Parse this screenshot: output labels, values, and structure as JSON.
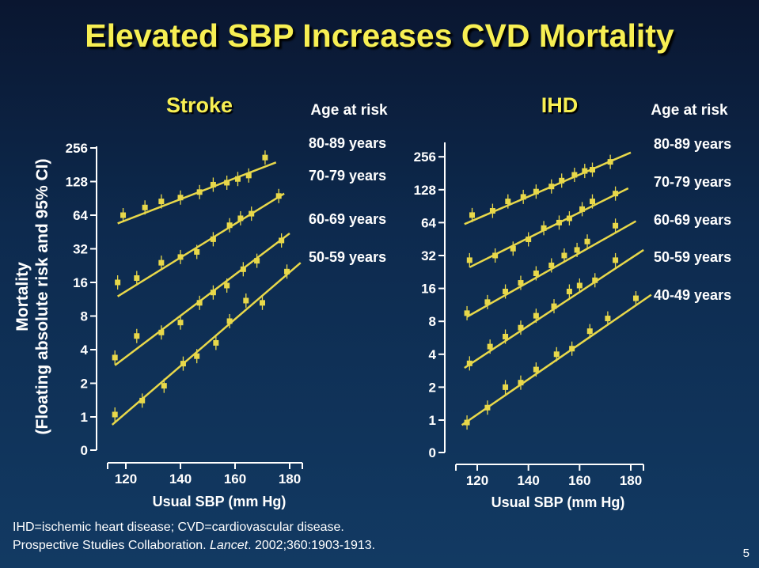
{
  "title": "Elevated SBP Increases CVD Mortality",
  "y_label_line1": "Mortality",
  "y_label_line2": "(Floating absolute risk and 95% CI)",
  "footnote_line1": "IHD=ischemic heart disease; CVD=cardiovascular disease.",
  "footnote_line2_pre": "Prospective Studies Collaboration. ",
  "footnote_line2_journal": "Lancet",
  "footnote_line2_post": ". 2002;360:1903-1913.",
  "slide_number": "5",
  "colors": {
    "title": "#f7ef53",
    "series": "#e8d84a",
    "text": "#ffffff"
  },
  "chart_data": [
    {
      "type": "line",
      "title": "Stroke",
      "legend_title": "Age at risk",
      "xlabel": "Usual SBP (mm Hg)",
      "ylabel": "Mortality (Floating absolute risk and 95% CI)",
      "y_scale": "log2",
      "y_ticks": [
        "0",
        "1",
        "2",
        "4",
        "8",
        "16",
        "32",
        "64",
        "128",
        "256"
      ],
      "x_ticks": [
        120,
        140,
        160,
        180
      ],
      "xlim": [
        113,
        185
      ],
      "series": [
        {
          "name": "80-89 years",
          "points": [
            [
              119,
              64
            ],
            [
              127,
              75
            ],
            [
              133,
              85
            ],
            [
              140,
              92
            ],
            [
              147,
              103
            ],
            [
              152,
              120
            ],
            [
              157,
              125
            ],
            [
              161,
              135
            ],
            [
              165,
              145
            ],
            [
              171,
              210
            ]
          ],
          "fit": [
            [
              117,
              54
            ],
            [
              175,
              190
            ]
          ]
        },
        {
          "name": "70-79 years",
          "points": [
            [
              117,
              16
            ],
            [
              124,
              17.5
            ],
            [
              133,
              24
            ],
            [
              140,
              27
            ],
            [
              146,
              30
            ],
            [
              152,
              39
            ],
            [
              158,
              52
            ],
            [
              162,
              60
            ],
            [
              166,
              66
            ],
            [
              176,
              95
            ]
          ],
          "fit": [
            [
              117,
              12
            ],
            [
              178,
              100
            ]
          ]
        },
        {
          "name": "60-69 years",
          "points": [
            [
              116,
              3.4
            ],
            [
              124,
              5.3
            ],
            [
              133,
              5.7
            ],
            [
              140,
              7
            ],
            [
              147,
              10.5
            ],
            [
              152,
              13
            ],
            [
              157,
              15
            ],
            [
              163,
              21
            ],
            [
              168,
              25
            ],
            [
              177,
              38
            ]
          ],
          "fit": [
            [
              116,
              2.9
            ],
            [
              180,
              44
            ]
          ]
        },
        {
          "name": "50-59 years",
          "points": [
            [
              116,
              1.05
            ],
            [
              126,
              1.4
            ],
            [
              134,
              1.9
            ],
            [
              141,
              3
            ],
            [
              146,
              3.5
            ],
            [
              153,
              4.6
            ],
            [
              158,
              7.2
            ],
            [
              164,
              11
            ],
            [
              170,
              10.5
            ],
            [
              179,
              20
            ]
          ],
          "fit": [
            [
              115,
              0.85
            ],
            [
              184,
              24
            ]
          ]
        }
      ]
    },
    {
      "type": "line",
      "title": "IHD",
      "legend_title": "Age at risk",
      "xlabel": "Usual SBP (mm Hg)",
      "ylabel": "",
      "y_scale": "log2",
      "y_ticks": [
        "0",
        "1",
        "2",
        "4",
        "8",
        "16",
        "32",
        "64",
        "128",
        "256"
      ],
      "x_ticks": [
        120,
        140,
        160,
        180
      ],
      "xlim": [
        113,
        188
      ],
      "series": [
        {
          "name": "80-89 years",
          "points": [
            [
              118,
              75
            ],
            [
              126,
              82
            ],
            [
              132,
              100
            ],
            [
              138,
              110
            ],
            [
              143,
              123
            ],
            [
              149,
              137
            ],
            [
              153,
              155
            ],
            [
              158,
              175
            ],
            [
              162,
              190
            ],
            [
              165,
              195
            ],
            [
              172,
              230
            ]
          ],
          "fit": [
            [
              115,
              62
            ],
            [
              180,
              280
            ]
          ]
        },
        {
          "name": "70-79 years",
          "points": [
            [
              117,
              29
            ],
            [
              127,
              32
            ],
            [
              134,
              37
            ],
            [
              140,
              45
            ],
            [
              146,
              57
            ],
            [
              152,
              64
            ],
            [
              156,
              70
            ],
            [
              161,
              85
            ],
            [
              165,
              100
            ],
            [
              174,
              118
            ]
          ],
          "fit": [
            [
              117,
              25
            ],
            [
              179,
              132
            ]
          ]
        },
        {
          "name": "60-69 years",
          "points": [
            [
              116,
              9.5
            ],
            [
              124,
              12
            ],
            [
              131,
              15
            ],
            [
              137,
              18
            ],
            [
              143,
              22
            ],
            [
              149,
              26
            ],
            [
              154,
              32
            ],
            [
              159,
              36
            ],
            [
              163,
              43
            ],
            [
              174,
              60
            ]
          ],
          "fit": [
            [
              116,
              8.8
            ],
            [
              182,
              66
            ]
          ]
        },
        {
          "name": "50-59 years",
          "points": [
            [
              117,
              3.3
            ],
            [
              125,
              4.7
            ],
            [
              131,
              5.8
            ],
            [
              137,
              7
            ],
            [
              143,
              9
            ],
            [
              150,
              11
            ],
            [
              156,
              15
            ],
            [
              160,
              17
            ],
            [
              166,
              19
            ],
            [
              174,
              29
            ]
          ],
          "fit": [
            [
              115,
              3.0
            ],
            [
              185,
              36
            ]
          ]
        },
        {
          "name": "40-49 years",
          "points": [
            [
              116,
              0.95
            ],
            [
              124,
              1.3
            ],
            [
              131,
              2
            ],
            [
              137,
              2.2
            ],
            [
              143,
              2.9
            ],
            [
              151,
              4
            ],
            [
              157,
              4.5
            ],
            [
              164,
              6.5
            ],
            [
              171,
              8.5
            ],
            [
              182,
              13
            ]
          ],
          "fit": [
            [
              114,
              0.9
            ],
            [
              188,
              14
            ]
          ]
        }
      ]
    }
  ]
}
